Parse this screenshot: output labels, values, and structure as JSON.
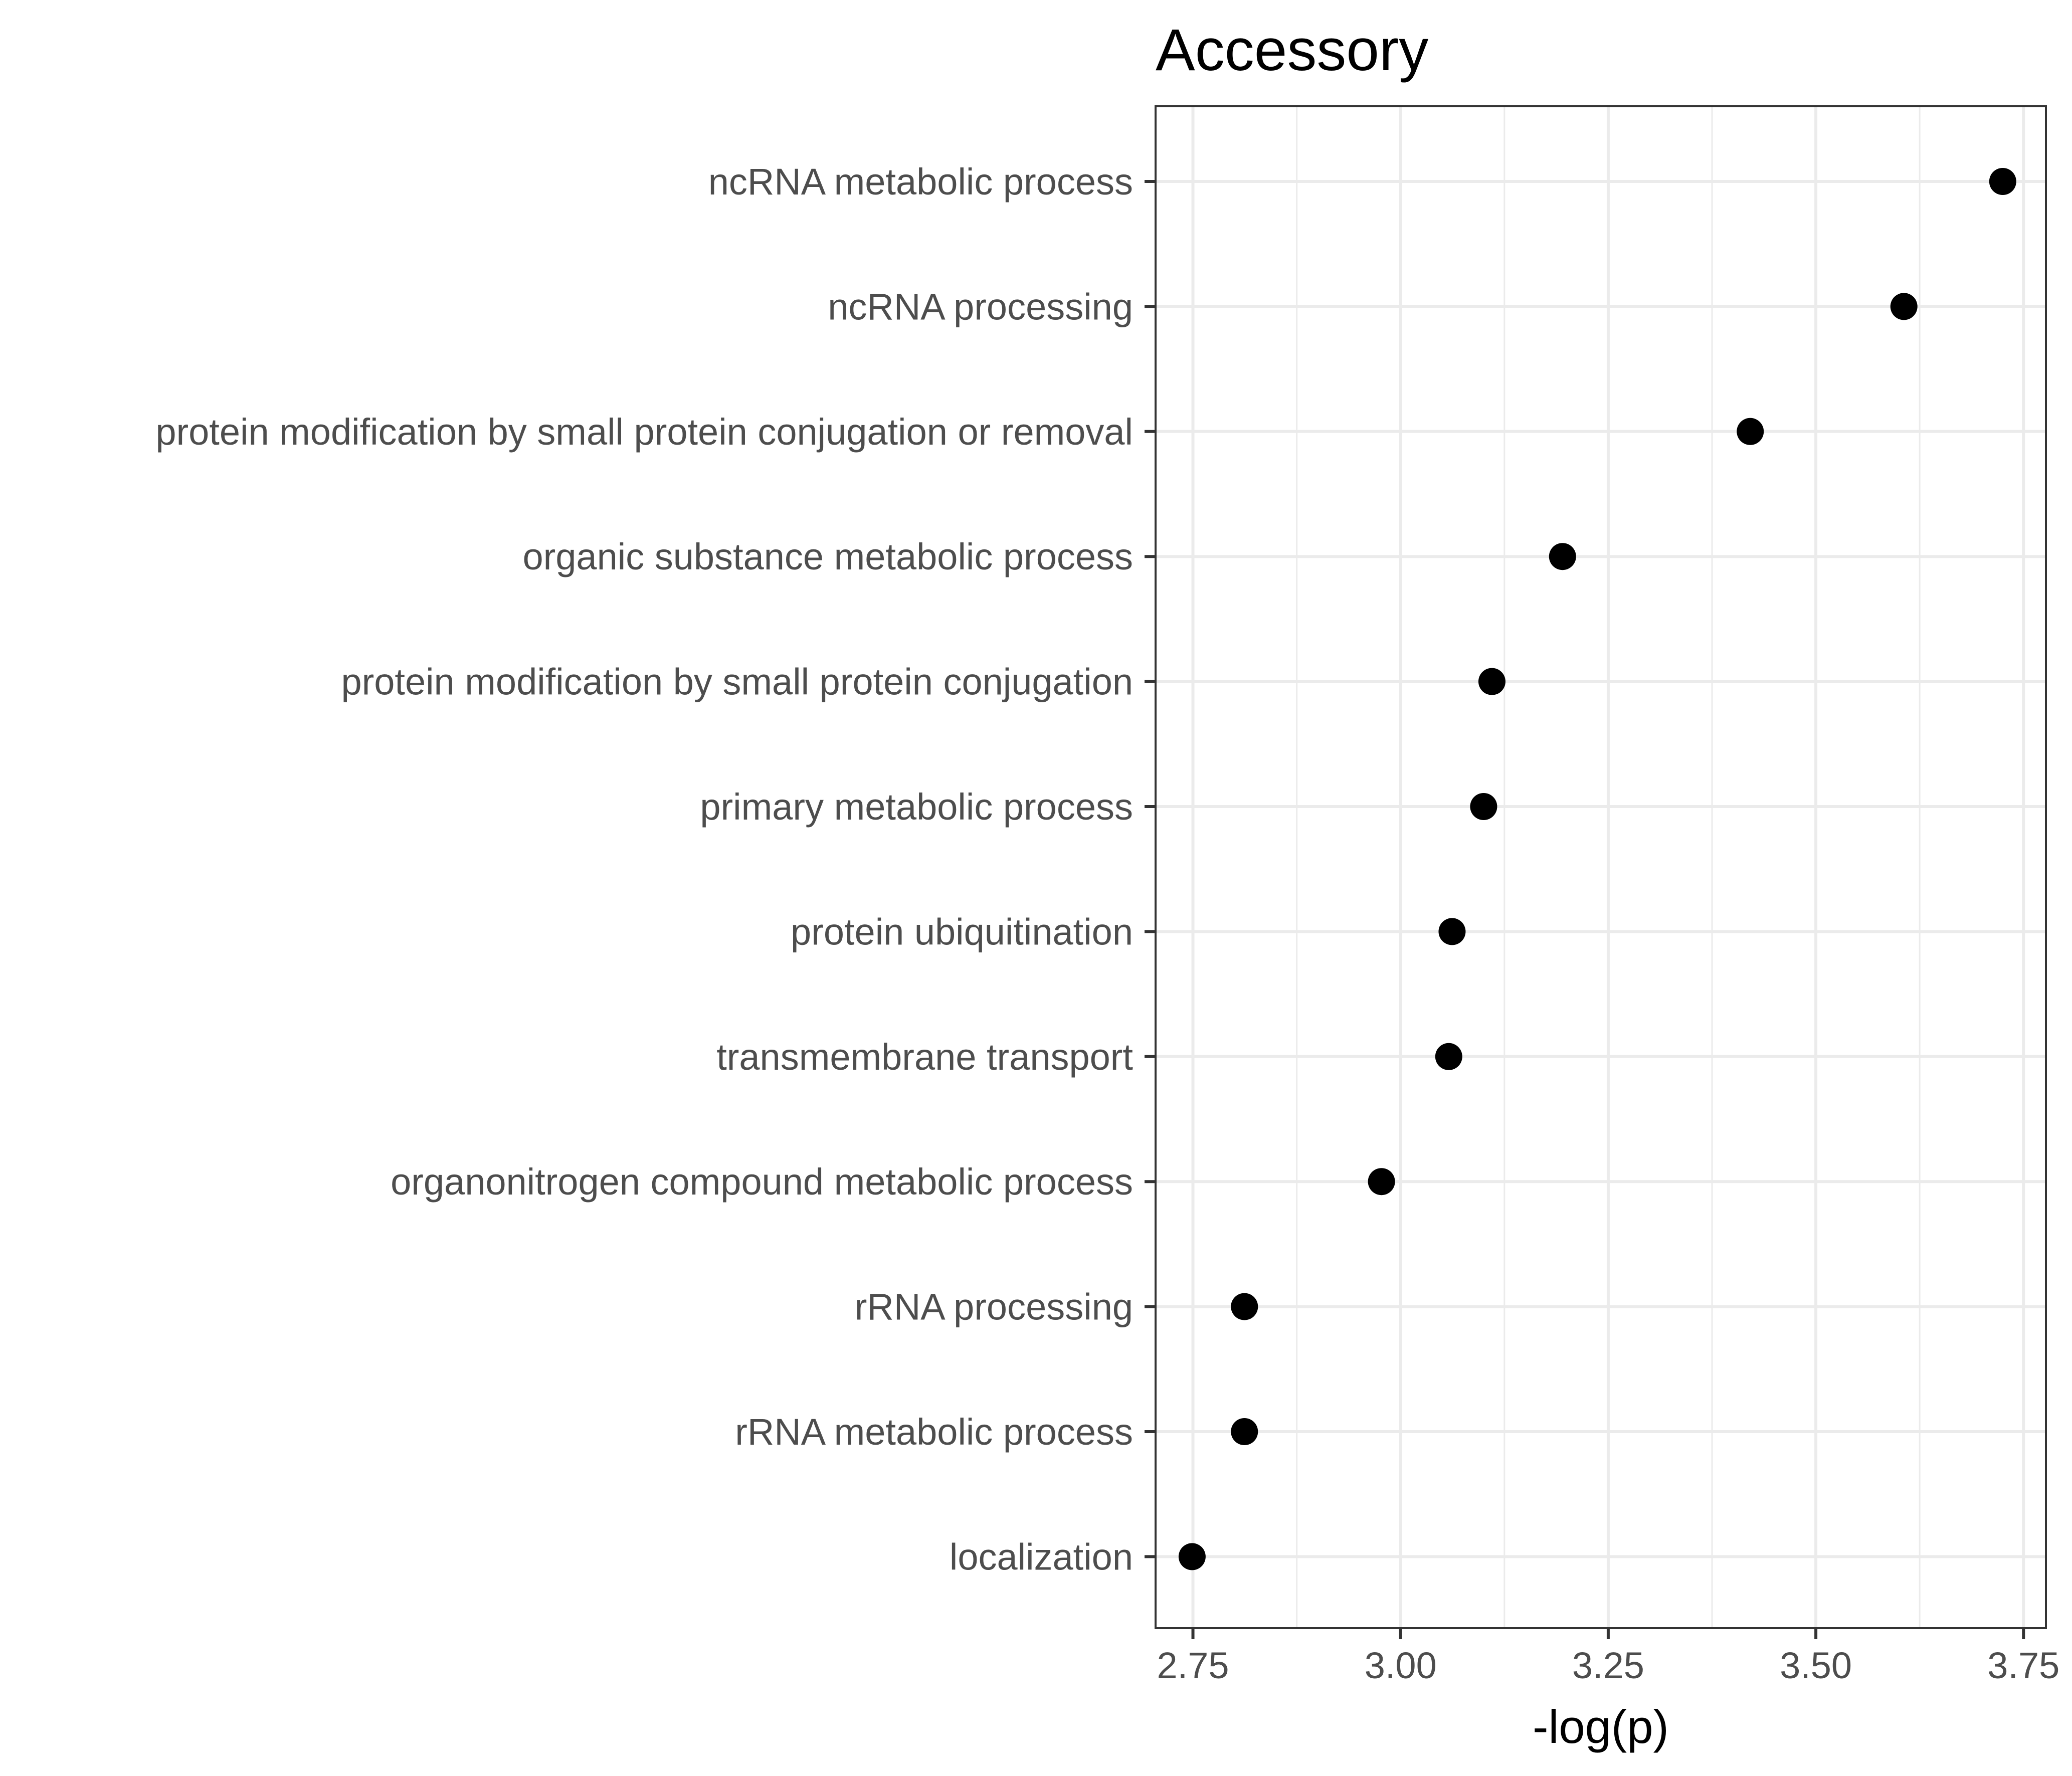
{
  "chart_data": {
    "type": "scatter",
    "title": "Accessory",
    "xlabel": "-log(p)",
    "ylabel": "",
    "xlim": [
      2.705,
      3.777
    ],
    "x_ticks": [
      2.75,
      3.0,
      3.25,
      3.5,
      3.75
    ],
    "x_tick_labels": [
      "2.75",
      "3.00",
      "3.25",
      "3.50",
      "3.75"
    ],
    "grid": true,
    "legend": "none",
    "point_color": "#000000",
    "categories": [
      "ncRNA metabolic process",
      "ncRNA processing",
      "protein modification by small protein conjugation or removal",
      "organic substance metabolic process",
      "protein modification by small protein conjugation",
      "primary metabolic process",
      "protein ubiquitination",
      "transmembrane transport",
      "organonitrogen compound metabolic process",
      "rRNA processing",
      "rRNA metabolic process",
      "localization"
    ],
    "values": [
      3.725,
      3.606,
      3.421,
      3.195,
      3.11,
      3.1,
      3.062,
      3.058,
      2.977,
      2.812,
      2.812,
      2.749
    ]
  }
}
